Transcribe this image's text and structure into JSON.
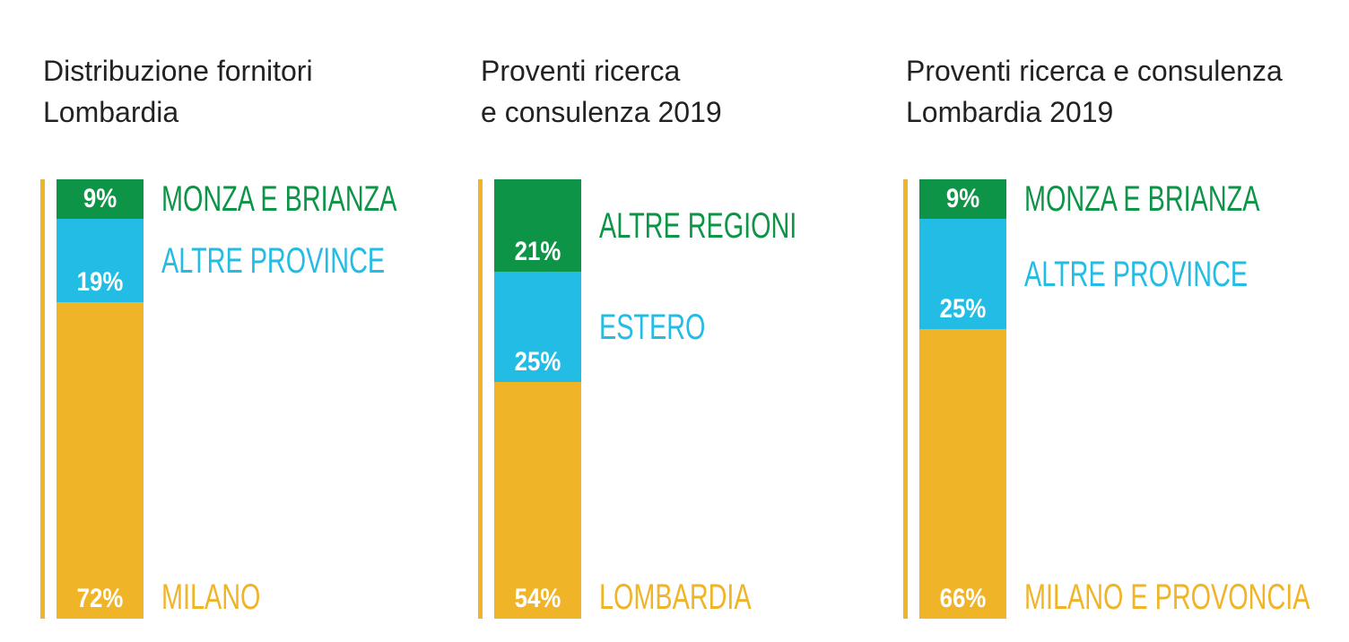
{
  "colors": {
    "yellow": "#F0B429",
    "blue": "#22BCE4",
    "green": "#0E9446",
    "text": "#222222",
    "white": "#FFFFFF"
  },
  "chart_data": [
    {
      "type": "bar",
      "stacked": true,
      "orientation": "vertical",
      "title": [
        "Distribuzione fornitori",
        "Lombardia"
      ],
      "segments": [
        {
          "name": "MONZA E BRIANZA",
          "value": 9,
          "label": "9%",
          "color": "#0E9446"
        },
        {
          "name": "ALTRE PROVINCE",
          "value": 19,
          "label": "19%",
          "color": "#22BCE4"
        },
        {
          "name": "MILANO",
          "value": 72,
          "label": "72%",
          "color": "#F0B429"
        }
      ],
      "ylim": [
        0,
        100
      ]
    },
    {
      "type": "bar",
      "stacked": true,
      "orientation": "vertical",
      "title": [
        "Proventi ricerca",
        "e consulenza 2019"
      ],
      "segments": [
        {
          "name": "ALTRE REGIONI",
          "value": 21,
          "label": "21%",
          "color": "#0E9446"
        },
        {
          "name": "ESTERO",
          "value": 25,
          "label": "25%",
          "color": "#22BCE4"
        },
        {
          "name": "LOMBARDIA",
          "value": 54,
          "label": "54%",
          "color": "#F0B429"
        }
      ],
      "ylim": [
        0,
        100
      ]
    },
    {
      "type": "bar",
      "stacked": true,
      "orientation": "vertical",
      "title": [
        "Proventi ricerca e consulenza",
        "Lombardia 2019"
      ],
      "segments": [
        {
          "name": "MONZA E BRIANZA",
          "value": 9,
          "label": "9%",
          "color": "#0E9446"
        },
        {
          "name": "ALTRE PROVINCE",
          "value": 25,
          "label": "25%",
          "color": "#22BCE4"
        },
        {
          "name": "MILANO E PROVONCIA",
          "value": 66,
          "label": "66%",
          "color": "#F0B429"
        }
      ],
      "ylim": [
        0,
        100
      ]
    }
  ]
}
